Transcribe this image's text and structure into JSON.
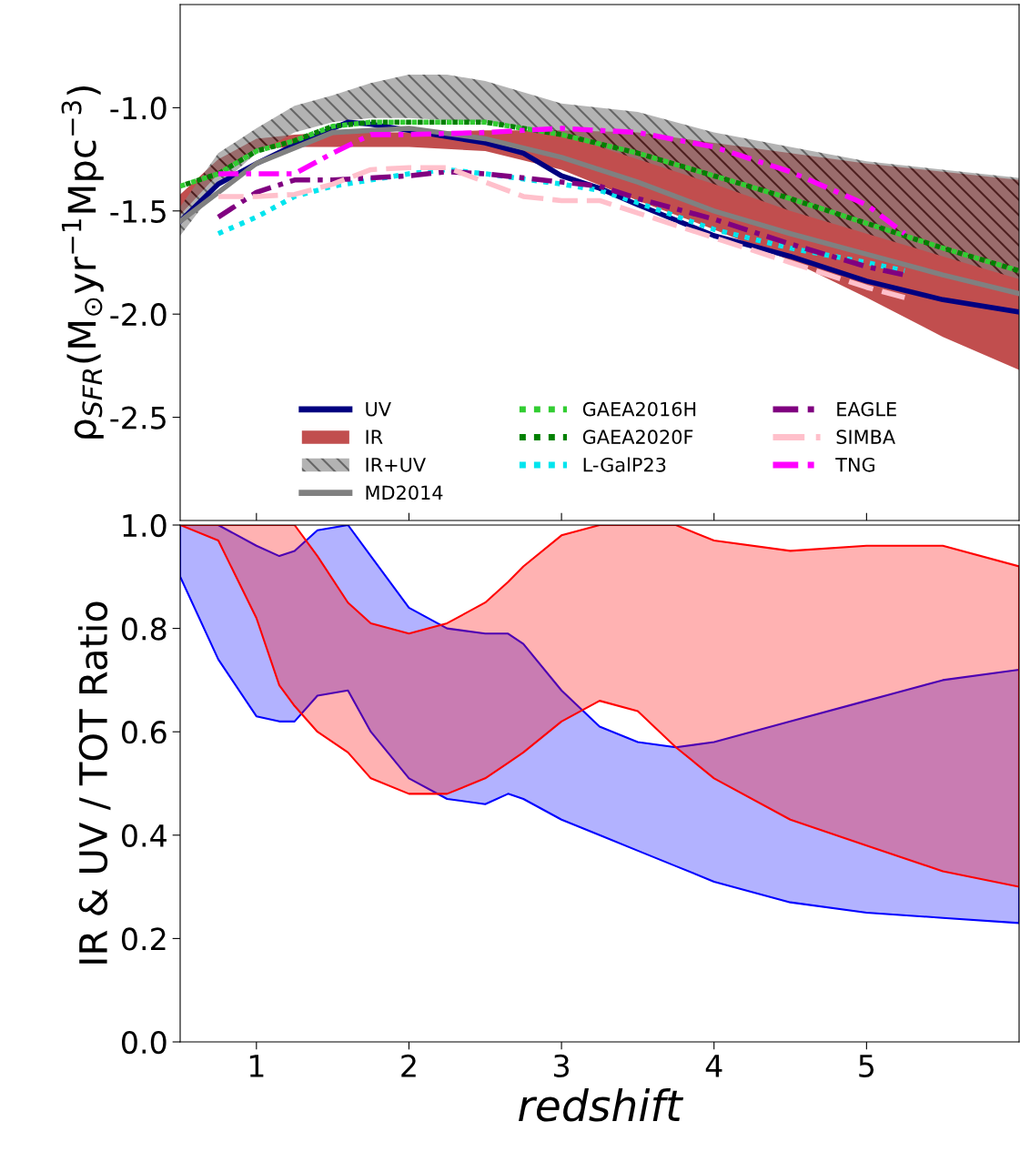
{
  "chart_data": [
    {
      "type": "line",
      "ylabel": "ρ$_{SFR}$(M$_{⊙}$yr$^{−1}$Mpc$^{−3}$)",
      "xlim": [
        0.5,
        6.0
      ],
      "ylim": [
        -3.0,
        -0.5
      ],
      "xticks": [
        1,
        2,
        3,
        4,
        5
      ],
      "yticks": [
        -2.5,
        {
          "value": -2.0,
          "label": "-2.0"
        },
        -1.5,
        {
          "value": -1.0,
          "label": "-1.0"
        }
      ],
      "tick_labels": "y",
      "legend": "bottom",
      "series": [
        {
          "name": "UV",
          "type": "line",
          "color": "#000080",
          "line_style": "solid",
          "x": [
            0.5,
            0.75,
            1.0,
            1.25,
            1.5,
            1.6,
            1.75,
            2.0,
            2.5,
            2.75,
            3.0,
            3.25,
            3.5,
            4.0,
            4.5,
            5.0,
            5.5,
            6.0
          ],
          "values": [
            -1.55,
            -1.37,
            -1.27,
            -1.18,
            -1.1,
            -1.07,
            -1.08,
            -1.11,
            -1.17,
            -1.22,
            -1.33,
            -1.39,
            -1.47,
            -1.62,
            -1.72,
            -1.84,
            -1.93,
            -1.99
          ]
        },
        {
          "name": "IR",
          "type": "area",
          "color": "#b22222",
          "x": [
            0.5,
            0.75,
            1.0,
            1.25,
            1.5,
            2.0,
            2.5,
            3.0,
            3.5,
            4.0,
            4.5,
            5.0,
            5.5,
            6.0
          ],
          "values": [
            null,
            null,
            null,
            null,
            null,
            null,
            null,
            null,
            null,
            null,
            null,
            null,
            null,
            null
          ],
          "upper": [
            -1.42,
            -1.25,
            -1.15,
            -1.13,
            -1.12,
            -1.12,
            -1.11,
            -1.11,
            -1.12,
            -1.17,
            -1.22,
            -1.27,
            -1.31,
            -1.35
          ],
          "lower": [
            -1.52,
            -1.32,
            -1.2,
            -1.19,
            -1.19,
            -1.19,
            -1.21,
            -1.3,
            -1.45,
            -1.59,
            -1.74,
            -1.92,
            -2.11,
            -2.27
          ]
        },
        {
          "name": "IR+UV",
          "type": "area",
          "color": "#808080",
          "x": [
            0.5,
            0.75,
            1.0,
            1.25,
            1.5,
            1.75,
            2.0,
            2.25,
            2.5,
            3.0,
            3.5,
            4.0,
            4.5,
            5.0,
            5.5,
            6.0
          ],
          "values": [
            null,
            null,
            null,
            null,
            null,
            null,
            null,
            null,
            null,
            null,
            null,
            null,
            null,
            null,
            null,
            null
          ],
          "upper": [
            -1.48,
            -1.22,
            -1.1,
            -0.99,
            -0.94,
            -0.88,
            -0.84,
            -0.84,
            -0.87,
            -0.98,
            -1.02,
            -1.12,
            -1.19,
            -1.26,
            -1.3,
            -1.34
          ],
          "lower": [
            -1.62,
            -1.38,
            -1.22,
            -1.12,
            -1.07,
            -1.05,
            -1.05,
            -1.06,
            -1.07,
            -1.13,
            -1.25,
            -1.37,
            -1.5,
            -1.61,
            -1.72,
            -1.83
          ]
        },
        {
          "name": "MD2014",
          "type": "line",
          "color": "#808080",
          "line_style": "solid",
          "x": [
            0.5,
            1.0,
            1.5,
            2.0,
            2.5,
            3.0,
            3.5,
            4.0,
            4.5,
            5.0,
            5.5,
            6.0
          ],
          "values": [
            -1.55,
            -1.27,
            -1.12,
            -1.1,
            -1.15,
            -1.24,
            -1.36,
            -1.5,
            -1.61,
            -1.71,
            -1.81,
            -1.9
          ]
        },
        {
          "name": "GAEA2016H",
          "type": "line",
          "color": "#32cd32",
          "line_style": "dotted",
          "x": [
            0.5,
            0.75,
            1.0,
            1.25,
            1.5,
            1.75,
            2.0,
            2.5,
            3.0,
            3.5,
            4.0,
            4.5,
            5.0,
            5.5,
            6.0
          ],
          "values": [
            -1.38,
            -1.32,
            -1.21,
            -1.16,
            -1.09,
            -1.07,
            -1.07,
            -1.07,
            -1.13,
            -1.22,
            -1.33,
            -1.44,
            -1.56,
            -1.68,
            -1.79
          ]
        },
        {
          "name": "GAEA2020F",
          "type": "line",
          "color": "#008000",
          "line_style": "dotted",
          "x": [
            0.5,
            0.75,
            1.0,
            1.25,
            1.5,
            1.75,
            2.0,
            2.5,
            3.0,
            3.5,
            4.0,
            4.5,
            5.0,
            5.5,
            6.0
          ],
          "values": [
            -1.38,
            -1.32,
            -1.21,
            -1.16,
            -1.09,
            -1.07,
            -1.07,
            -1.07,
            -1.13,
            -1.22,
            -1.33,
            -1.44,
            -1.56,
            -1.68,
            -1.79
          ]
        },
        {
          "name": "L-GalP23",
          "type": "line",
          "color": "#00e5ee",
          "line_style": "dotted",
          "x": [
            0.75,
            1.0,
            1.25,
            1.5,
            2.0,
            2.25,
            2.5,
            3.0,
            3.25,
            3.5,
            4.0,
            4.5,
            5.0,
            5.25
          ],
          "values": [
            -1.61,
            -1.53,
            -1.43,
            -1.38,
            -1.32,
            -1.3,
            -1.32,
            -1.37,
            -1.4,
            -1.46,
            -1.59,
            -1.68,
            -1.75,
            -1.79
          ]
        },
        {
          "name": "EAGLE",
          "type": "line",
          "color": "#800080",
          "line_style": "dashdot",
          "x": [
            0.75,
            1.0,
            1.25,
            1.5,
            2.0,
            2.25,
            2.5,
            3.0,
            3.25,
            3.5,
            4.0,
            4.5,
            5.0,
            5.25
          ],
          "values": [
            -1.53,
            -1.41,
            -1.35,
            -1.35,
            -1.33,
            -1.31,
            -1.32,
            -1.36,
            -1.38,
            -1.44,
            -1.54,
            -1.66,
            -1.77,
            -1.81
          ]
        },
        {
          "name": "SIMBA",
          "type": "line",
          "color": "#ffc0cb",
          "line_style": "dashed",
          "x": [
            0.75,
            1.0,
            1.25,
            1.5,
            1.75,
            2.0,
            2.25,
            2.5,
            2.75,
            3.0,
            3.25,
            3.5,
            4.0,
            4.5,
            5.0,
            5.25
          ],
          "values": [
            -1.43,
            -1.43,
            -1.42,
            -1.37,
            -1.3,
            -1.29,
            -1.29,
            -1.36,
            -1.43,
            -1.45,
            -1.45,
            -1.51,
            -1.63,
            -1.75,
            -1.87,
            -1.92
          ]
        },
        {
          "name": "TNG",
          "type": "line",
          "color": "#ff00ff",
          "line_style": "dashdot",
          "x": [
            0.75,
            1.0,
            1.25,
            1.5,
            1.75,
            2.0,
            2.5,
            3.0,
            3.5,
            4.0,
            4.5,
            5.0,
            5.25
          ],
          "values": [
            -1.32,
            -1.32,
            -1.32,
            -1.22,
            -1.13,
            -1.13,
            -1.12,
            -1.1,
            -1.12,
            -1.19,
            -1.31,
            -1.47,
            -1.61
          ]
        }
      ]
    },
    {
      "type": "area",
      "ylabel": "IR & UV / TOT Ratio",
      "xlabel": "redshift",
      "xlim": [
        0.5,
        6.0
      ],
      "ylim": [
        0.0,
        1.0
      ],
      "xticks": [
        1,
        2,
        3,
        4,
        5
      ],
      "yticks": [
        {
          "value": 0.0,
          "label": "0.0"
        },
        0.2,
        0.4,
        0.6,
        0.8,
        {
          "value": 1.0,
          "label": "1.0"
        }
      ],
      "x": [
        0.5,
        0.75,
        1.0,
        1.15,
        1.25,
        1.4,
        1.6,
        1.75,
        2.0,
        2.25,
        2.5,
        2.65,
        2.75,
        3.0,
        3.25,
        3.5,
        3.75,
        4.0,
        4.5,
        5.0,
        5.5,
        6.0
      ],
      "series": [
        {
          "color": "#0000ff",
          "values": [
            null,
            null,
            null,
            null,
            null,
            null,
            null,
            null,
            null,
            null,
            null,
            null,
            null,
            null,
            null,
            null,
            null,
            null,
            null,
            null,
            null,
            null
          ],
          "upper": [
            1.0,
            1.0,
            0.96,
            0.94,
            0.95,
            0.99,
            1.0,
            0.94,
            0.84,
            0.8,
            0.79,
            0.79,
            0.77,
            0.68,
            0.61,
            0.58,
            0.57,
            0.58,
            0.62,
            0.66,
            0.7,
            0.72
          ],
          "lower": [
            0.9,
            0.74,
            0.63,
            0.62,
            0.62,
            0.67,
            0.68,
            0.6,
            0.51,
            0.47,
            0.46,
            0.48,
            0.47,
            0.43,
            0.4,
            0.37,
            0.34,
            0.31,
            0.27,
            0.25,
            0.24,
            0.23
          ]
        },
        {
          "color": "#ff0000",
          "values": [
            null,
            null,
            null,
            null,
            null,
            null,
            null,
            null,
            null,
            null,
            null,
            null,
            null,
            null,
            null,
            null,
            null,
            null,
            null,
            null,
            null,
            null
          ],
          "upper": [
            1.0,
            1.0,
            1.0,
            1.0,
            1.0,
            0.94,
            0.85,
            0.81,
            0.79,
            0.81,
            0.85,
            0.89,
            0.92,
            0.98,
            1.0,
            1.0,
            1.0,
            0.97,
            0.95,
            0.96,
            0.96,
            0.92
          ],
          "lower": [
            1.0,
            0.97,
            0.82,
            0.69,
            0.65,
            0.6,
            0.56,
            0.51,
            0.48,
            0.48,
            0.51,
            0.54,
            0.56,
            0.62,
            0.66,
            0.64,
            0.57,
            0.51,
            0.43,
            0.38,
            0.33,
            0.3
          ]
        }
      ]
    }
  ]
}
